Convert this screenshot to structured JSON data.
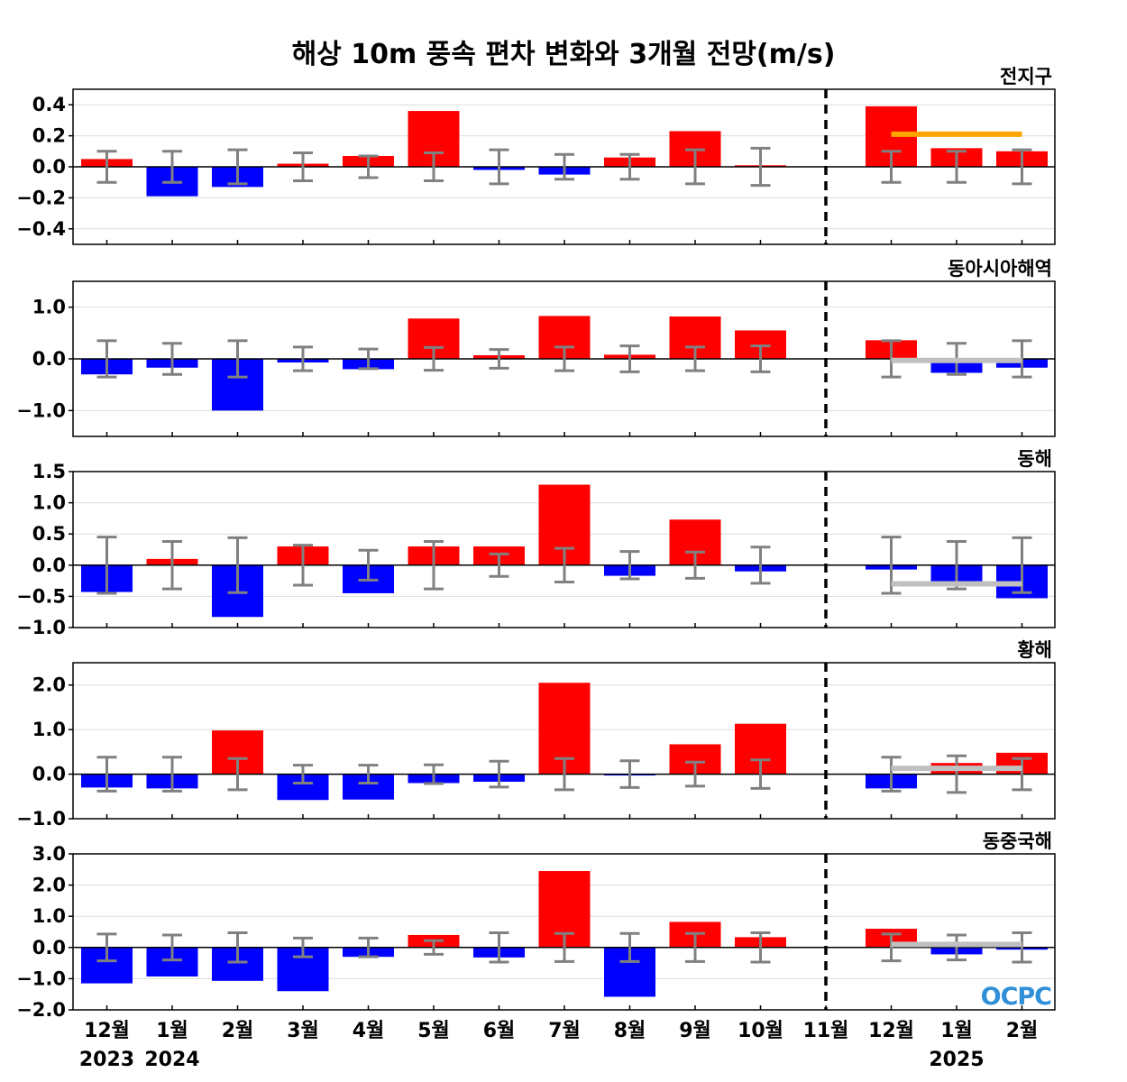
{
  "title": "해상 10m 풍속 편차 변화와 3개월 전망(m/s)",
  "logo_text": "OCPC",
  "colors": {
    "positive": "#ff0000",
    "negative": "#0000ff",
    "error_bar": "#808080",
    "forecast_global": "#ffa500",
    "forecast_regional": "#c0c0c0"
  },
  "chart_data": {
    "type": "bar",
    "x_months": [
      "12월",
      "1월",
      "2월",
      "3월",
      "4월",
      "5월",
      "6월",
      "7월",
      "8월",
      "9월",
      "10월",
      "11월",
      "12월",
      "1월",
      "2월"
    ],
    "x_years": [
      {
        "label": "2023",
        "month_index": 0
      },
      {
        "label": "2024",
        "month_index": 1
      },
      {
        "label": "2025",
        "month_index": 13
      }
    ],
    "forecast_divider_after_index": 11,
    "grid": true,
    "panels": [
      {
        "region": "전지구",
        "ylim": [
          -0.5,
          0.5
        ],
        "yticks": [
          "0.4",
          "0.2",
          "0.0",
          "−0.2",
          "−0.4"
        ],
        "ytick_values": [
          0.4,
          0.2,
          0.0,
          -0.2,
          -0.4
        ],
        "values": [
          0.05,
          -0.19,
          -0.13,
          0.02,
          0.07,
          0.36,
          -0.02,
          -0.05,
          0.06,
          0.23,
          0.01,
          0.0,
          0.39,
          0.12,
          0.1
        ],
        "error": [
          0.1,
          0.1,
          0.11,
          0.09,
          0.07,
          0.09,
          0.11,
          0.08,
          0.08,
          0.11,
          0.12,
          null,
          0.1,
          0.1,
          0.11
        ],
        "forecast_mean": 0.21,
        "forecast_color": "#ffa500"
      },
      {
        "region": "동아시아해역",
        "ylim": [
          -1.5,
          1.5
        ],
        "yticks": [
          "1.0",
          "0.0",
          "−1.0"
        ],
        "ytick_values": [
          1.0,
          0.0,
          -1.0
        ],
        "values": [
          -0.3,
          -0.17,
          -1.0,
          -0.07,
          -0.2,
          0.78,
          0.07,
          0.83,
          0.08,
          0.82,
          0.55,
          0.0,
          0.36,
          -0.27,
          -0.17
        ],
        "error": [
          0.35,
          0.3,
          0.35,
          0.23,
          0.19,
          0.22,
          0.18,
          0.23,
          0.25,
          0.23,
          0.25,
          null,
          0.35,
          0.3,
          0.35
        ],
        "forecast_mean": -0.03,
        "forecast_color": "#c0c0c0"
      },
      {
        "region": "동해",
        "ylim": [
          -1.0,
          1.5
        ],
        "yticks": [
          "1.5",
          "1.0",
          "0.5",
          "0.0",
          "−0.5",
          "−1.0"
        ],
        "ytick_values": [
          1.5,
          1.0,
          0.5,
          0.0,
          -0.5,
          -1.0
        ],
        "values": [
          -0.43,
          0.1,
          -0.83,
          0.3,
          -0.45,
          0.3,
          0.3,
          1.29,
          -0.17,
          0.73,
          -0.1,
          0.0,
          -0.07,
          -0.3,
          -0.53
        ],
        "error": [
          0.45,
          0.38,
          0.44,
          0.32,
          0.24,
          0.38,
          0.18,
          0.27,
          0.22,
          0.21,
          0.29,
          null,
          0.45,
          0.38,
          0.44
        ],
        "forecast_mean": -0.3,
        "forecast_color": "#c0c0c0"
      },
      {
        "region": "황해",
        "ylim": [
          -1.0,
          2.5
        ],
        "yticks": [
          "2.0",
          "1.0",
          "0.0",
          "−1.0"
        ],
        "ytick_values": [
          2.0,
          1.0,
          0.0,
          -1.0
        ],
        "values": [
          -0.3,
          -0.32,
          0.98,
          -0.58,
          -0.57,
          -0.2,
          -0.17,
          2.05,
          -0.02,
          0.67,
          1.13,
          0.0,
          -0.32,
          0.25,
          0.48
        ],
        "error": [
          0.38,
          0.38,
          0.35,
          0.2,
          0.2,
          0.21,
          0.29,
          0.35,
          0.3,
          0.27,
          0.32,
          null,
          0.38,
          0.41,
          0.35
        ],
        "forecast_mean": 0.13,
        "forecast_color": "#c0c0c0"
      },
      {
        "region": "동중국해",
        "ylim": [
          -2.0,
          3.0
        ],
        "yticks": [
          "3.0",
          "2.0",
          "1.0",
          "0.0",
          "−1.0",
          "−2.0"
        ],
        "ytick_values": [
          3.0,
          2.0,
          1.0,
          0.0,
          -1.0,
          -2.0
        ],
        "values": [
          -1.15,
          -0.93,
          -1.07,
          -1.4,
          -0.3,
          0.4,
          -0.32,
          2.45,
          -1.58,
          0.82,
          0.33,
          0.0,
          0.6,
          -0.22,
          -0.07
        ],
        "error": [
          0.43,
          0.4,
          0.47,
          0.3,
          0.3,
          0.22,
          0.47,
          0.45,
          0.45,
          0.45,
          0.47,
          null,
          0.43,
          0.4,
          0.47
        ],
        "forecast_mean": 0.1,
        "forecast_color": "#c0c0c0"
      }
    ]
  }
}
